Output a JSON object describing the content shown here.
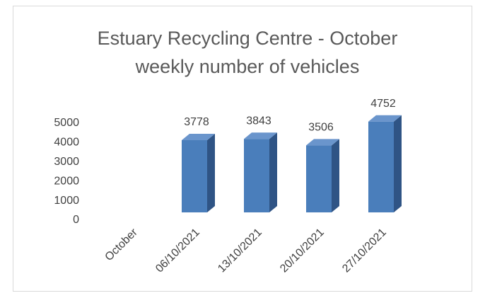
{
  "chart_data": {
    "type": "bar3d",
    "title": "Estuary Recycling Centre - October weekly number of vehicles",
    "categories": [
      "October",
      "06/10/2021",
      "13/10/2021",
      "20/10/2021",
      "27/10/2021"
    ],
    "values": [
      null,
      3778,
      3843,
      3506,
      4752
    ],
    "color": "#4a7ebb",
    "ylim": [
      0,
      5000
    ],
    "yticks": [
      0,
      1000,
      2000,
      3000,
      4000,
      5000
    ],
    "grid": false
  }
}
